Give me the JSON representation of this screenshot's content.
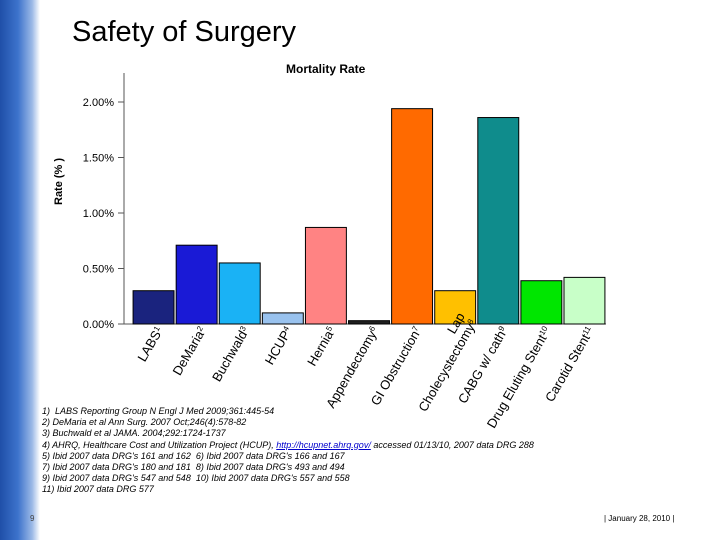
{
  "slide": {
    "title": "Safety of Surgery",
    "page_number": "9",
    "footer_date": "| January 28, 2010 |"
  },
  "footnotes": {
    "line1": "1)  LABS Reporting Group N Engl J Med 2009;361:445-54",
    "line2": "2) DeMaria et al Ann Surg. 2007 Oct;246(4):578-82",
    "line3": "3) Buchwald et al JAMA. 2004;292:1724-1737",
    "line4_pre": "4) AHRQ, Healthcare Cost and Utilization Project (HCUP), ",
    "line4_link": "http://hcupnet.ahrq.gov/",
    "line4_post": " accessed 01/13/10, 2007 data DRG 288",
    "line5": "5) Ibid 2007 data DRG's 161 and 162  6) Ibid 2007 data DRG's 166 and 167",
    "line6": "7) Ibid 2007 data DRG's 180 and 181  8) Ibid 2007 data DRG's 493 and 494",
    "line7": "9) Ibid 2007 data DRG's 547 and 548  10) Ibid 2007 data DRG's 557 and 558",
    "line8": "11) Ibid 2007 data DRG 577"
  },
  "chart_data": {
    "type": "bar",
    "title": "Mortality Rate",
    "ylabel": "Rate (% )",
    "ylim": [
      0,
      2.0
    ],
    "yticks": [
      "0.00%",
      "0.50%",
      "1.00%",
      "1.50%",
      "2.00%"
    ],
    "ytick_values": [
      0,
      0.5,
      1.0,
      1.5,
      2.0
    ],
    "grid": false,
    "categories": [
      "LABS1",
      "DeMaria2",
      "Buchwald3",
      "HCUP4",
      "Hernia5",
      "Appendectomy6",
      "GI Obstruction7",
      "Lap Cholecystectomy8",
      "CABG w/ cath9",
      "Drug Eluting Stent10",
      "Carotid Stent11"
    ],
    "category_labels": [
      {
        "line1": "LABS",
        "sup1": "1"
      },
      {
        "line1": "DeMaria",
        "sup1": "2"
      },
      {
        "line1": "Buchwald",
        "sup1": "3"
      },
      {
        "line1": "HCUP",
        "sup1": "4"
      },
      {
        "line1": "Hernia",
        "sup1": "5"
      },
      {
        "line1": "Appendectomy",
        "sup1": "6"
      },
      {
        "line1": "GI Obstruction",
        "sup1": "7"
      },
      {
        "line1": "Lap",
        "sup1": "",
        "line2": "Cholecystectomy",
        "sup2": "8"
      },
      {
        "line1": "CABG w/ cath",
        "sup1": "9"
      },
      {
        "line1": "Drug Eluting Stent",
        "sup1": "10"
      },
      {
        "line1": "Carotid Stent",
        "sup1": "11"
      }
    ],
    "values": [
      0.3,
      0.71,
      0.55,
      0.1,
      0.87,
      0.03,
      1.94,
      0.3,
      1.86,
      0.39,
      0.42
    ],
    "colors": [
      "#1a237e",
      "#1a1ad6",
      "#1ab2f5",
      "#99c2ee",
      "#ff8383",
      "#1f1f1f",
      "#ff6a00",
      "#ffc000",
      "#0f8c8c",
      "#00e600",
      "#c8ffc8"
    ]
  }
}
